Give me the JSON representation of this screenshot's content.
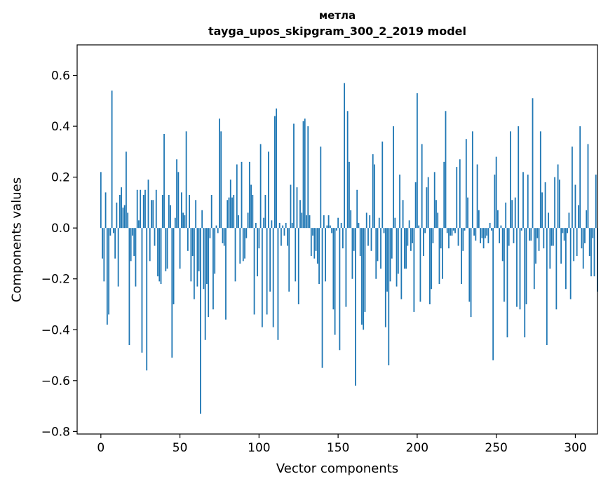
{
  "chart_data": {
    "type": "bar",
    "title": "метла",
    "subtitle": "tayga_upos_skipgram_300_2_2019 model",
    "xlabel": "Vector components",
    "ylabel": "Components values",
    "xlim": [
      -15,
      314
    ],
    "ylim": [
      -0.81,
      0.72
    ],
    "xticks": [
      0,
      50,
      100,
      150,
      200,
      250,
      300
    ],
    "yticks": [
      -0.8,
      -0.6,
      -0.4,
      -0.2,
      0.0,
      0.2,
      0.4,
      0.6
    ],
    "ytick_labels": [
      "−0.8",
      "−0.6",
      "−0.4",
      "−0.2",
      "0.0",
      "0.2",
      "0.4",
      "0.6"
    ],
    "bar_color": "#1f77b4",
    "values": [
      0.22,
      -0.12,
      -0.21,
      0.14,
      -0.38,
      -0.34,
      -0.03,
      0.54,
      -0.02,
      -0.12,
      0.1,
      -0.23,
      0.13,
      0.16,
      0.08,
      0.09,
      0.3,
      0.06,
      -0.46,
      -0.13,
      -0.03,
      -0.11,
      -0.23,
      0.15,
      0.03,
      0.15,
      -0.49,
      0.13,
      0.15,
      -0.56,
      0.19,
      -0.13,
      0.11,
      0.11,
      -0.07,
      0.15,
      -0.19,
      -0.21,
      -0.22,
      0.13,
      0.37,
      -0.17,
      -0.16,
      0.13,
      0.09,
      -0.51,
      -0.3,
      0.04,
      0.27,
      0.22,
      -0.16,
      0.14,
      0.06,
      0.05,
      0.38,
      -0.09,
      0.13,
      -0.21,
      -0.11,
      -0.28,
      0.11,
      -0.23,
      -0.17,
      -0.73,
      0.07,
      -0.24,
      -0.44,
      -0.22,
      -0.35,
      -0.04,
      0.13,
      -0.32,
      -0.18,
      0.01,
      -0.02,
      0.43,
      0.38,
      -0.06,
      -0.07,
      -0.36,
      0.11,
      0.12,
      0.19,
      0.12,
      0.13,
      -0.21,
      0.25,
      0.05,
      -0.14,
      0.26,
      -0.13,
      -0.12,
      -0.04,
      0.06,
      0.26,
      0.17,
      0.13,
      -0.34,
      0.02,
      -0.19,
      -0.08,
      0.33,
      -0.39,
      0.04,
      0.13,
      -0.34,
      0.3,
      -0.25,
      0.03,
      -0.39,
      0.44,
      0.47,
      -0.44,
      0.02,
      -0.07,
      0.01,
      -0.03,
      0.02,
      -0.07,
      -0.25,
      0.17,
      0.02,
      0.41,
      -0.21,
      0.16,
      -0.3,
      0.11,
      0.06,
      0.42,
      0.43,
      0.05,
      0.4,
      0.05,
      -0.11,
      -0.03,
      -0.12,
      -0.09,
      -0.14,
      -0.22,
      0.32,
      -0.55,
      0.05,
      -0.21,
      0.01,
      0.05,
      0.01,
      -0.02,
      -0.32,
      -0.42,
      -0.01,
      0.04,
      -0.48,
      0.02,
      -0.08,
      0.57,
      -0.31,
      0.46,
      0.26,
      0.07,
      -0.2,
      -0.09,
      -0.62,
      0.15,
      0.02,
      -0.11,
      -0.38,
      -0.4,
      -0.33,
      0.06,
      -0.07,
      0.05,
      -0.09,
      0.29,
      0.25,
      -0.2,
      -0.13,
      0.04,
      -0.16,
      0.34,
      -0.02,
      -0.39,
      -0.25,
      -0.54,
      -0.21,
      -0.12,
      0.4,
      0.04,
      -0.23,
      -0.18,
      0.21,
      -0.28,
      0.11,
      -0.16,
      -0.16,
      -0.07,
      0.03,
      -0.09,
      -0.06,
      -0.33,
      0.18,
      0.53,
      0.01,
      -0.29,
      0.33,
      -0.11,
      -0.02,
      0.16,
      0.2,
      -0.3,
      -0.24,
      -0.06,
      0.22,
      0.11,
      0.06,
      -0.22,
      -0.08,
      -0.2,
      0.26,
      0.46,
      -0.02,
      -0.08,
      -0.03,
      -0.03,
      -0.01,
      -0.02,
      0.24,
      -0.07,
      0.27,
      -0.22,
      -0.09,
      -0.01,
      0.35,
      0.12,
      -0.29,
      -0.35,
      0.38,
      -0.03,
      -0.05,
      0.25,
      0.07,
      -0.06,
      -0.04,
      -0.08,
      -0.04,
      -0.03,
      -0.06,
      0.02,
      -0.01,
      -0.52,
      0.21,
      0.28,
      0.07,
      -0.06,
      0.01,
      -0.13,
      -0.29,
      0.1,
      -0.43,
      -0.07,
      0.38,
      0.11,
      -0.06,
      0.12,
      -0.31,
      0.4,
      -0.32,
      -0.01,
      0.22,
      -0.43,
      -0.3,
      0.21,
      -0.05,
      -0.05,
      0.51,
      -0.24,
      -0.14,
      -0.04,
      -0.09,
      0.38,
      0.14,
      -0.08,
      0.18,
      -0.46,
      0.06,
      -0.16,
      -0.07,
      -0.07,
      0.2,
      -0.32,
      0.25,
      0.19,
      -0.14,
      -0.02,
      -0.05,
      -0.24,
      -0.02,
      0.06,
      -0.28,
      0.32,
      -0.13,
      0.17,
      -0.11,
      0.09,
      0.4,
      -0.08,
      -0.16,
      -0.06,
      0.07,
      0.33,
      -0.11,
      -0.19,
      -0.04,
      -0.19,
      0.21,
      -0.25
    ]
  }
}
